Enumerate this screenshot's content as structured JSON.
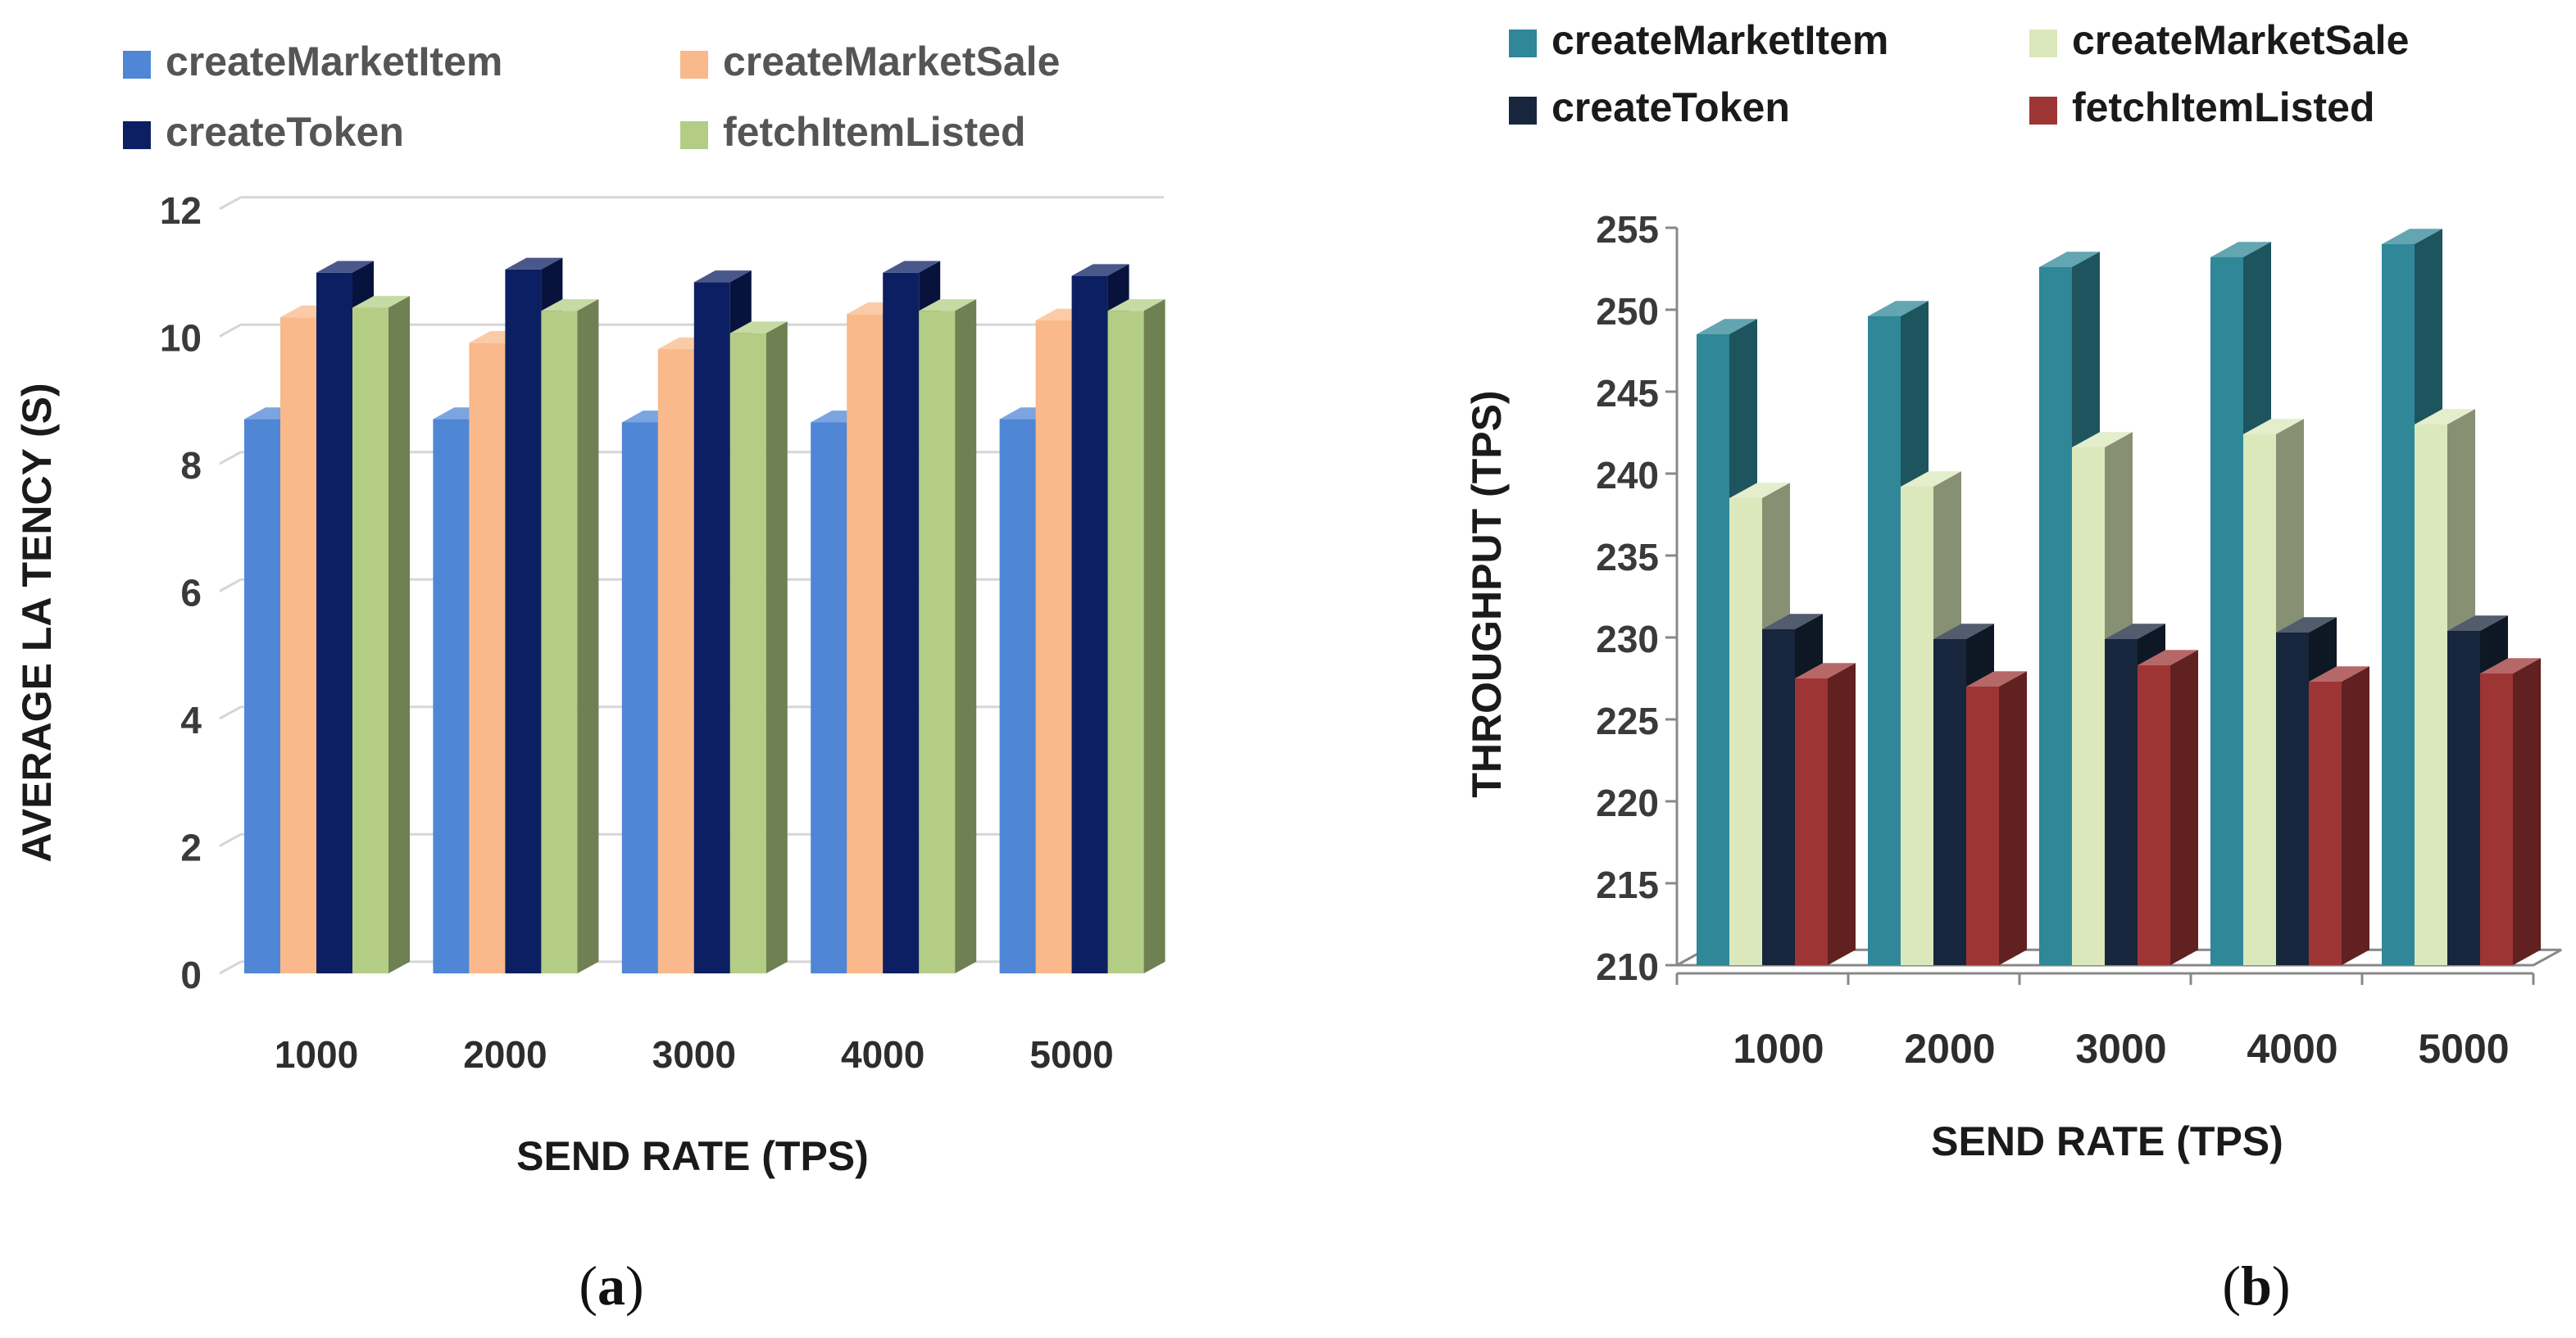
{
  "charts": [
    {
      "id": "a",
      "caption": {
        "open": "(",
        "letter": "a",
        "close": ")"
      },
      "chart_data": {
        "type": "bar",
        "title": "",
        "xlabel": "SEND RATE (TPS)",
        "ylabel": "AVERAGE LA TENCY (S)",
        "ylim": [
          0,
          12
        ],
        "yticks": [
          0,
          2,
          4,
          6,
          8,
          10,
          12
        ],
        "grid": true,
        "legend_position": "top",
        "categories": [
          "1000",
          "2000",
          "3000",
          "4000",
          "5000"
        ],
        "series": [
          {
            "name": "createMarketItem",
            "values": [
              8.7,
              8.7,
              8.65,
              8.65,
              8.7
            ]
          },
          {
            "name": "createMarketSale",
            "values": [
              10.3,
              9.9,
              9.8,
              10.35,
              10.25
            ]
          },
          {
            "name": "createToken",
            "values": [
              11.0,
              11.05,
              10.85,
              11.0,
              10.95
            ]
          },
          {
            "name": "fetchItemListed",
            "values": [
              10.45,
              10.4,
              10.05,
              10.4,
              10.4
            ]
          }
        ]
      },
      "colors": {
        "createMarketItem": "#4f86d6",
        "createMarketSale": "#f9b98a",
        "createToken": "#0d1f63",
        "fetchItemListed": "#b3ce84"
      }
    },
    {
      "id": "b",
      "caption": {
        "open": "(",
        "letter": "b",
        "close": ")"
      },
      "chart_data": {
        "type": "bar",
        "title": "",
        "xlabel": "SEND RATE  (TPS)",
        "ylabel": "THROUGHPUT  (TPS)",
        "ylim": [
          210,
          255
        ],
        "yticks": [
          210,
          215,
          220,
          225,
          230,
          235,
          240,
          245,
          250,
          255
        ],
        "grid": false,
        "legend_position": "top",
        "categories": [
          "1000",
          "2000",
          "3000",
          "4000",
          "5000"
        ],
        "series": [
          {
            "name": "createMarketItem",
            "values": [
              248.5,
              249.6,
              252.6,
              253.2,
              254.0
            ]
          },
          {
            "name": "createMarketSale",
            "values": [
              238.5,
              239.2,
              241.6,
              242.4,
              243.0
            ]
          },
          {
            "name": "createToken",
            "values": [
              230.5,
              229.9,
              229.9,
              230.3,
              230.4
            ]
          },
          {
            "name": "fetchItemListed",
            "values": [
              227.5,
              227.0,
              228.3,
              227.3,
              227.8
            ]
          }
        ]
      },
      "colors": {
        "createMarketItem": "#2f8797",
        "createMarketSale": "#dbe8bb",
        "createToken": "#17263c",
        "fetchItemListed": "#9e3535"
      }
    }
  ]
}
